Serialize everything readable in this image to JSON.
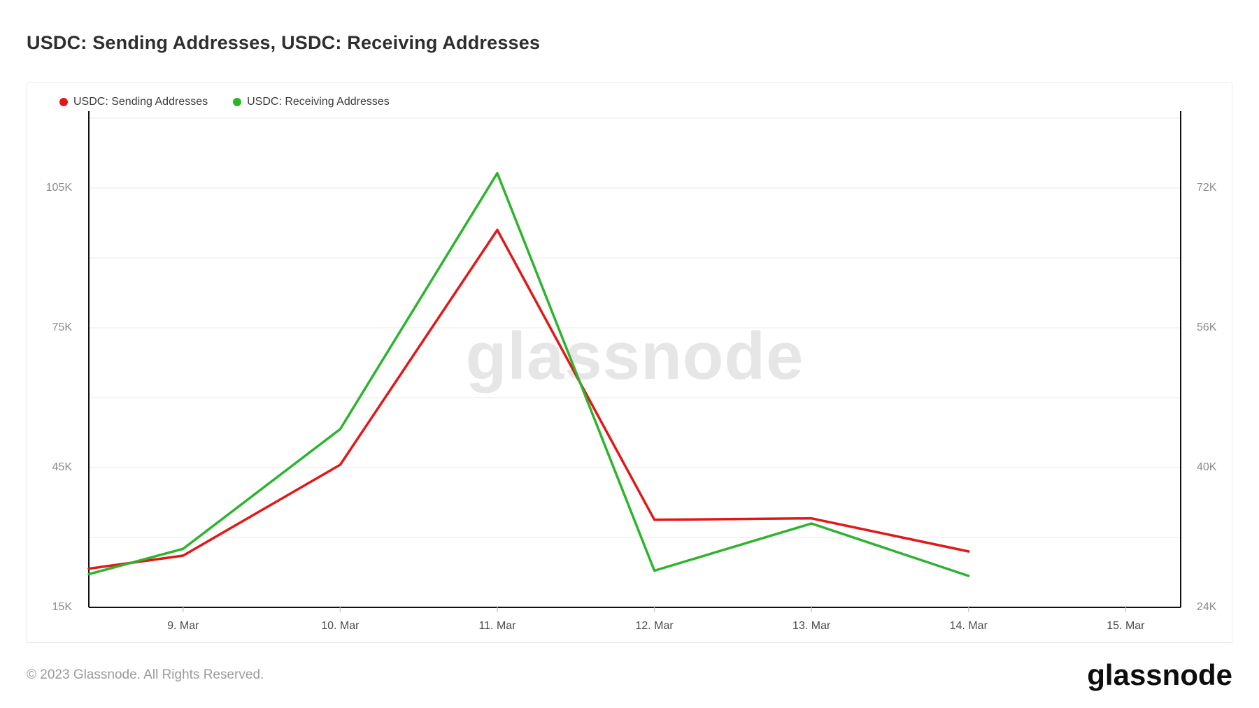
{
  "title": "USDC: Sending Addresses, USDC: Receiving Addresses",
  "legend": [
    {
      "id": "sending",
      "label": "USDC: Sending Addresses",
      "color": "#e21717"
    },
    {
      "id": "receiving",
      "label": "USDC: Receiving Addresses",
      "color": "#2db42e"
    }
  ],
  "watermark": "glassnode",
  "footer": {
    "copyright": "© 2023 Glassnode. All Rights Reserved.",
    "logo_text": "glassnode"
  },
  "chart_data": {
    "type": "line",
    "title": "USDC: Sending Addresses, USDC: Receiving Addresses",
    "x_unit": "day of March 2023",
    "x_tick_days": [
      9,
      10,
      11,
      12,
      13,
      14,
      15
    ],
    "x_tick_labels": [
      "9. Mar",
      "10. Mar",
      "11. Mar",
      "12. Mar",
      "13. Mar",
      "14. Mar",
      "15. Mar"
    ],
    "x_range_days": [
      8.4,
      15.35
    ],
    "grid": true,
    "legend_position": "top-left",
    "left_axis": {
      "tick_labels": [
        "105K",
        "75K",
        "45K",
        "15K"
      ],
      "tick_values": [
        105000,
        75000,
        45000,
        15000
      ],
      "range": [
        15000,
        121500
      ],
      "gridline_step": 15000
    },
    "right_axis": {
      "tick_labels": [
        "72K",
        "56K",
        "40K",
        "24K"
      ],
      "tick_values": [
        72000,
        56000,
        40000,
        24000
      ],
      "range": [
        24000,
        80800
      ],
      "gridline_step": 8000
    },
    "series": [
      {
        "name": "USDC: Sending Addresses",
        "color": "#e21717",
        "axis": "left",
        "x": [
          8.4,
          9,
          10,
          11,
          12,
          13,
          14
        ],
        "values": [
          23300,
          26100,
          45600,
          96000,
          33800,
          34100,
          27000
        ],
        "note": "first point clipped at left edge of plot"
      },
      {
        "name": "USDC: Receiving Addresses",
        "color": "#2db42e",
        "axis": "right",
        "x": [
          8.4,
          9,
          10,
          11,
          12,
          13,
          14
        ],
        "values": [
          27800,
          30700,
          44400,
          73700,
          28200,
          33600,
          27600
        ],
        "note": "first point clipped at left edge of plot"
      }
    ]
  }
}
